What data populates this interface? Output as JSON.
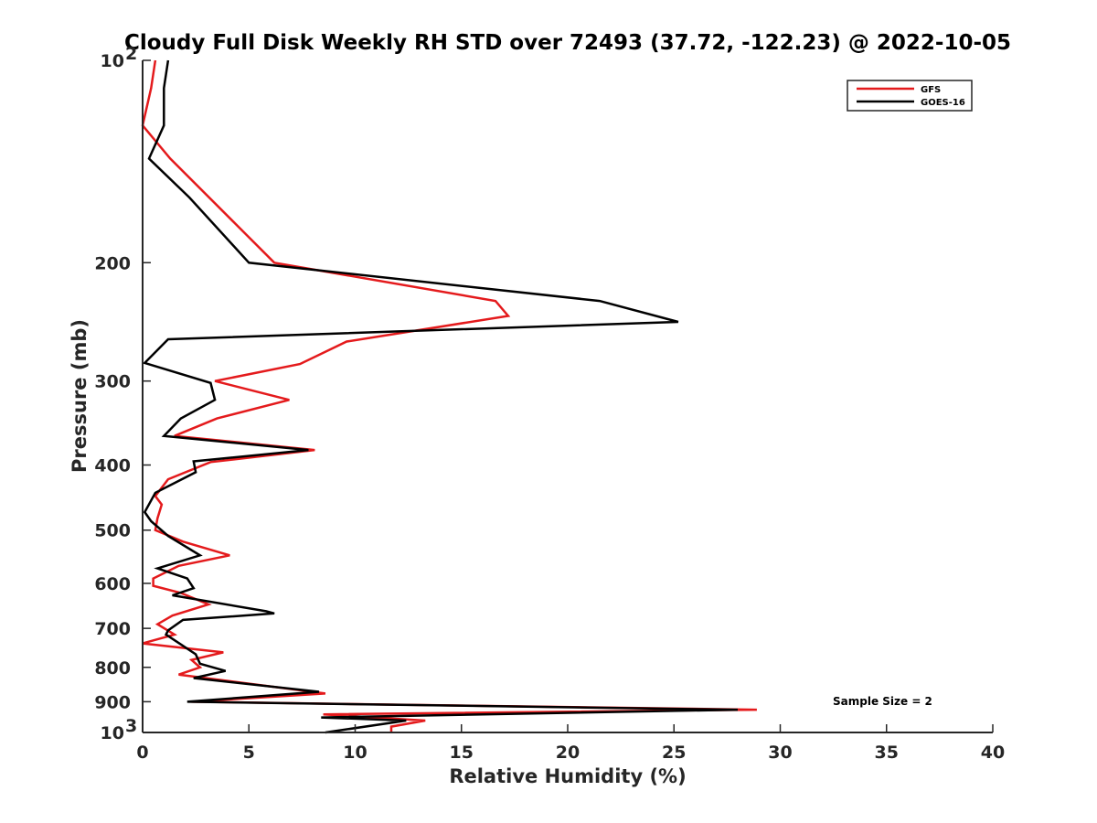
{
  "chart_data": {
    "type": "line",
    "title": "Cloudy Full Disk Weekly RH STD over 72493 (37.72, -122.23) @ 2022-10-05",
    "xlabel": "Relative Humidity (%)",
    "ylabel": "Pressure (mb)",
    "xlim": [
      0,
      40
    ],
    "ylim": [
      100,
      1000
    ],
    "yscale": "log",
    "y_reversed": true,
    "grid": false,
    "legend_position": "top-right",
    "x_ticks": [
      0,
      5,
      10,
      15,
      20,
      25,
      30,
      35,
      40
    ],
    "x_tick_labels": [
      "0",
      "5",
      "10",
      "15",
      "20",
      "25",
      "30",
      "35",
      "40"
    ],
    "y_ticks": [
      100,
      200,
      300,
      400,
      500,
      600,
      700,
      800,
      900,
      1000
    ],
    "y_tick_labels": [
      {
        "base": "10",
        "exp": "2"
      },
      {
        "base": "200",
        "exp": ""
      },
      {
        "base": "300",
        "exp": ""
      },
      {
        "base": "400",
        "exp": ""
      },
      {
        "base": "500",
        "exp": ""
      },
      {
        "base": "600",
        "exp": ""
      },
      {
        "base": "700",
        "exp": ""
      },
      {
        "base": "800",
        "exp": ""
      },
      {
        "base": "900",
        "exp": ""
      },
      {
        "base": "10",
        "exp": "3"
      }
    ],
    "annotation": "Sample Size = 2",
    "series": [
      {
        "name": "GFS",
        "color": "#e41a1c",
        "x": [
          0.6,
          0.4,
          0.0,
          1.3,
          6.2,
          16.6,
          17.2,
          9.6,
          7.4,
          3.4,
          6.9,
          3.5,
          1.5,
          8.1,
          3.2,
          1.2,
          0.6,
          0.9,
          0.7,
          0.6,
          1.9,
          4.1,
          1.7,
          0.5,
          0.5,
          1.8,
          3.1,
          1.4,
          0.7,
          1.5,
          0.0,
          3.8,
          2.3,
          2.7,
          1.7,
          8.6,
          2.3,
          28.9,
          8.5,
          13.3,
          11.7,
          11.7
        ],
        "y": [
          100,
          110,
          125,
          140,
          200,
          228,
          240,
          262,
          283,
          300,
          320,
          341,
          362,
          380,
          396,
          420,
          445,
          458,
          480,
          500,
          520,
          545,
          565,
          590,
          605,
          620,
          645,
          670,
          690,
          715,
          737,
          760,
          780,
          800,
          820,
          875,
          900,
          925,
          940,
          960,
          980,
          1000
        ]
      },
      {
        "name": "GOES-16",
        "color": "#000000",
        "x": [
          1.2,
          1.0,
          1.0,
          0.3,
          2.2,
          5.0,
          21.5,
          25.2,
          1.2,
          0.1,
          3.2,
          3.4,
          1.8,
          1.0,
          7.8,
          2.4,
          2.5,
          0.6,
          0.1,
          0.4,
          1.2,
          2.7,
          0.7,
          2.1,
          2.4,
          1.4,
          5.8,
          6.2,
          1.9,
          1.2,
          1.1,
          2.5,
          2.7,
          3.9,
          2.4,
          8.3,
          2.1,
          28.0,
          8.4,
          12.4,
          8.6
        ],
        "y": [
          100,
          110,
          125,
          140,
          160,
          200,
          228,
          245,
          260,
          282,
          302,
          320,
          341,
          362,
          380,
          395,
          410,
          440,
          470,
          485,
          510,
          545,
          570,
          590,
          610,
          625,
          660,
          665,
          680,
          705,
          715,
          765,
          790,
          810,
          830,
          870,
          900,
          925,
          950,
          960,
          1000
        ]
      }
    ]
  }
}
